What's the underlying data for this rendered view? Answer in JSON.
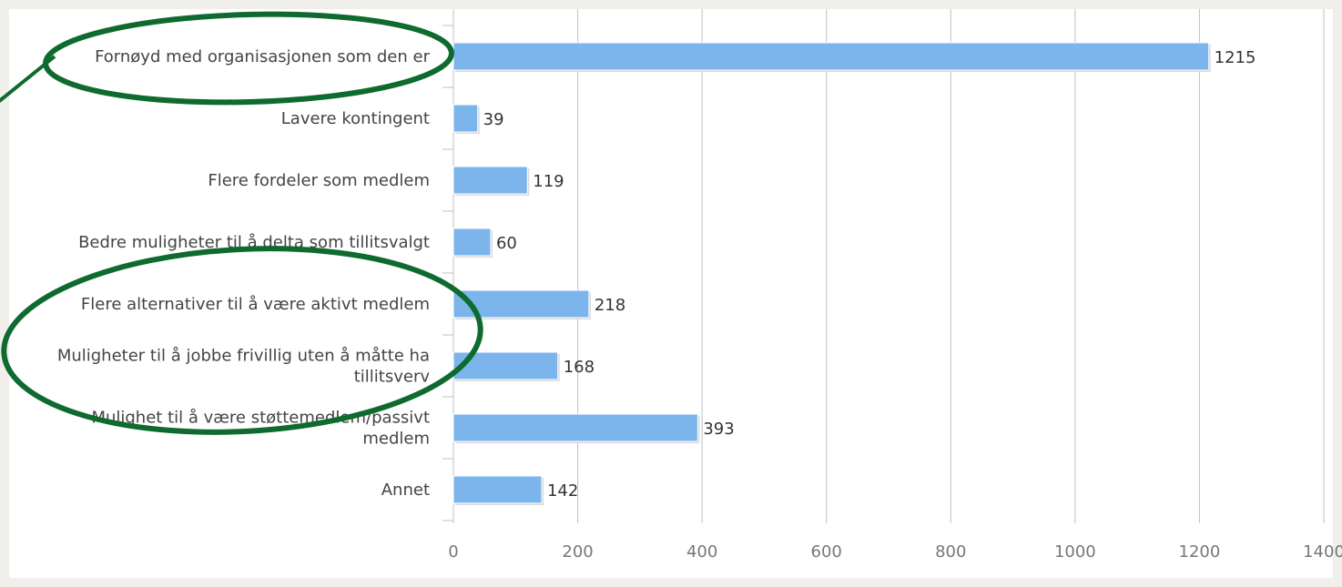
{
  "chart_data": {
    "type": "bar",
    "orientation": "horizontal",
    "categories": [
      [
        "Fornøyd med organisasjonen som den er"
      ],
      [
        "Lavere kontingent"
      ],
      [
        "Flere fordeler som medlem"
      ],
      [
        "Bedre muligheter til å delta som tillitsvalgt"
      ],
      [
        "Flere alternativer til å være aktivt medlem"
      ],
      [
        "Muligheter til å jobbe frivillig uten å måtte ha",
        "tillitsverv"
      ],
      [
        "Mulighet til å være støttemedlem/passivt",
        "medlem"
      ],
      [
        "Annet"
      ]
    ],
    "values": [
      1215,
      39,
      119,
      60,
      218,
      168,
      393,
      142
    ],
    "xlim": [
      0,
      1400
    ],
    "ticks": [
      "0",
      "200",
      "400",
      "600",
      "800",
      "1000",
      "1200",
      "1400"
    ],
    "grid": true,
    "title": "",
    "xlabel": "",
    "ylabel": ""
  },
  "colors": {
    "bar": "#7cb5ec",
    "grid": "#c0c0c0",
    "annotation": "#0e6a2e",
    "background": "#f0efec"
  },
  "annotations": [
    "green-ellipse-top",
    "green-ellipse-middle"
  ]
}
